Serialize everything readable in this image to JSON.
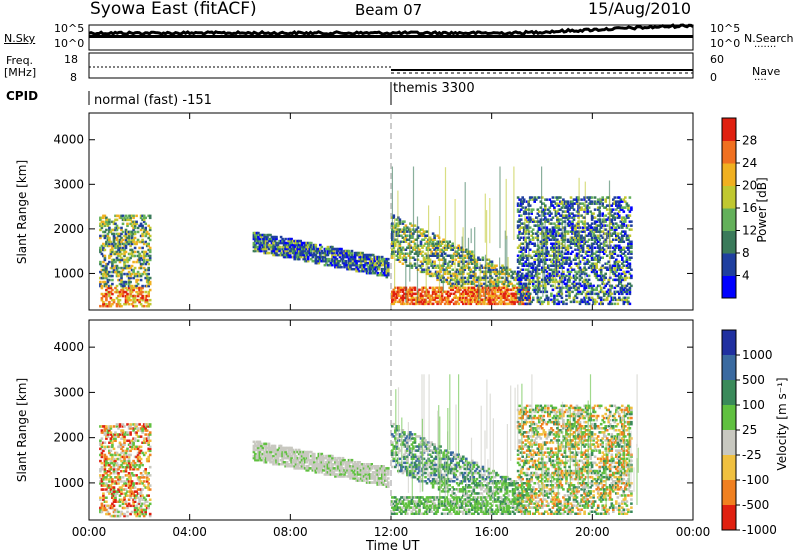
{
  "header": {
    "station": "Syowa East (fitACF)",
    "beam": "Beam 07",
    "date": "15/Aug/2010"
  },
  "strips": {
    "nsky_label": "N.Sky",
    "nsky_ticks": [
      "10^5",
      "10^0"
    ],
    "nsearch_label": "N.Search",
    "nsearch_ticks": [
      "10^5",
      "10^0"
    ],
    "freq_label": "Freq.",
    "freq_unit": "[MHz]",
    "freq_ticks": [
      "18",
      "8"
    ],
    "nave_label": "Nave",
    "nave_ticks": [
      "60",
      "0"
    ],
    "cpid_label": "CPID",
    "cpid_modes": [
      {
        "name": "normal (fast) -151",
        "start_hour": 0
      },
      {
        "name": "themis 3300",
        "start_hour": 12
      }
    ]
  },
  "chart_data": [
    {
      "type": "heatmap",
      "title": "",
      "ylabel": "Slant Range [km]",
      "ylim": [
        180,
        4600
      ],
      "yticks": [
        "1000",
        "2000",
        "3000",
        "4000"
      ],
      "colorbar_label": "Power [dB]",
      "colorbar_ticks": [
        "4",
        "8",
        "12",
        "16",
        "20",
        "24",
        "28"
      ],
      "colorbar_colors": [
        "#0000ff",
        "#1f3f9f",
        "#3a7a5a",
        "#63b05a",
        "#c0c830",
        "#f0b020",
        "#f07020",
        "#e02010"
      ],
      "echo_regions": [
        {
          "t0": 0.4,
          "t1": 2.4,
          "r0": 250,
          "r1": 2300,
          "level": "mixed-high"
        },
        {
          "t0": 6.5,
          "t1": 11.9,
          "r0": 900,
          "r1": 2200,
          "level": "moderate"
        },
        {
          "t0": 12.0,
          "t1": 17.5,
          "r0": 300,
          "r1": 3400,
          "level": "high"
        },
        {
          "t0": 17.0,
          "t1": 21.5,
          "r0": 300,
          "r1": 2700,
          "level": "moderate"
        }
      ]
    },
    {
      "type": "heatmap",
      "title": "",
      "xlabel": "Time UT",
      "xticks": [
        "00:00",
        "04:00",
        "08:00",
        "12:00",
        "16:00",
        "20:00",
        "00:00"
      ],
      "ylabel": "Slant Range [km]",
      "ylim": [
        180,
        4600
      ],
      "yticks": [
        "1000",
        "2000",
        "3000",
        "4000"
      ],
      "colorbar_label": "Velocity [m s⁻¹]",
      "colorbar_ticks": [
        "1000",
        "500",
        "100",
        "25",
        "-25",
        "-100",
        "-500",
        "-1000"
      ],
      "colorbar_colors": [
        "#2030a0",
        "#3a6aa0",
        "#3a8a5a",
        "#60c040",
        "#c8c8c0",
        "#f0c040",
        "#f08020",
        "#e02010"
      ],
      "echo_regions": [
        {
          "t0": 0.4,
          "t1": 2.4,
          "r0": 250,
          "r1": 2300,
          "level": "receding"
        },
        {
          "t0": 6.5,
          "t1": 11.9,
          "r0": 900,
          "r1": 2200,
          "level": "ground-scatter"
        },
        {
          "t0": 12.0,
          "t1": 17.5,
          "r0": 300,
          "r1": 3400,
          "level": "approaching"
        },
        {
          "t0": 17.0,
          "t1": 21.5,
          "r0": 300,
          "r1": 2700,
          "level": "mixed"
        }
      ]
    }
  ]
}
